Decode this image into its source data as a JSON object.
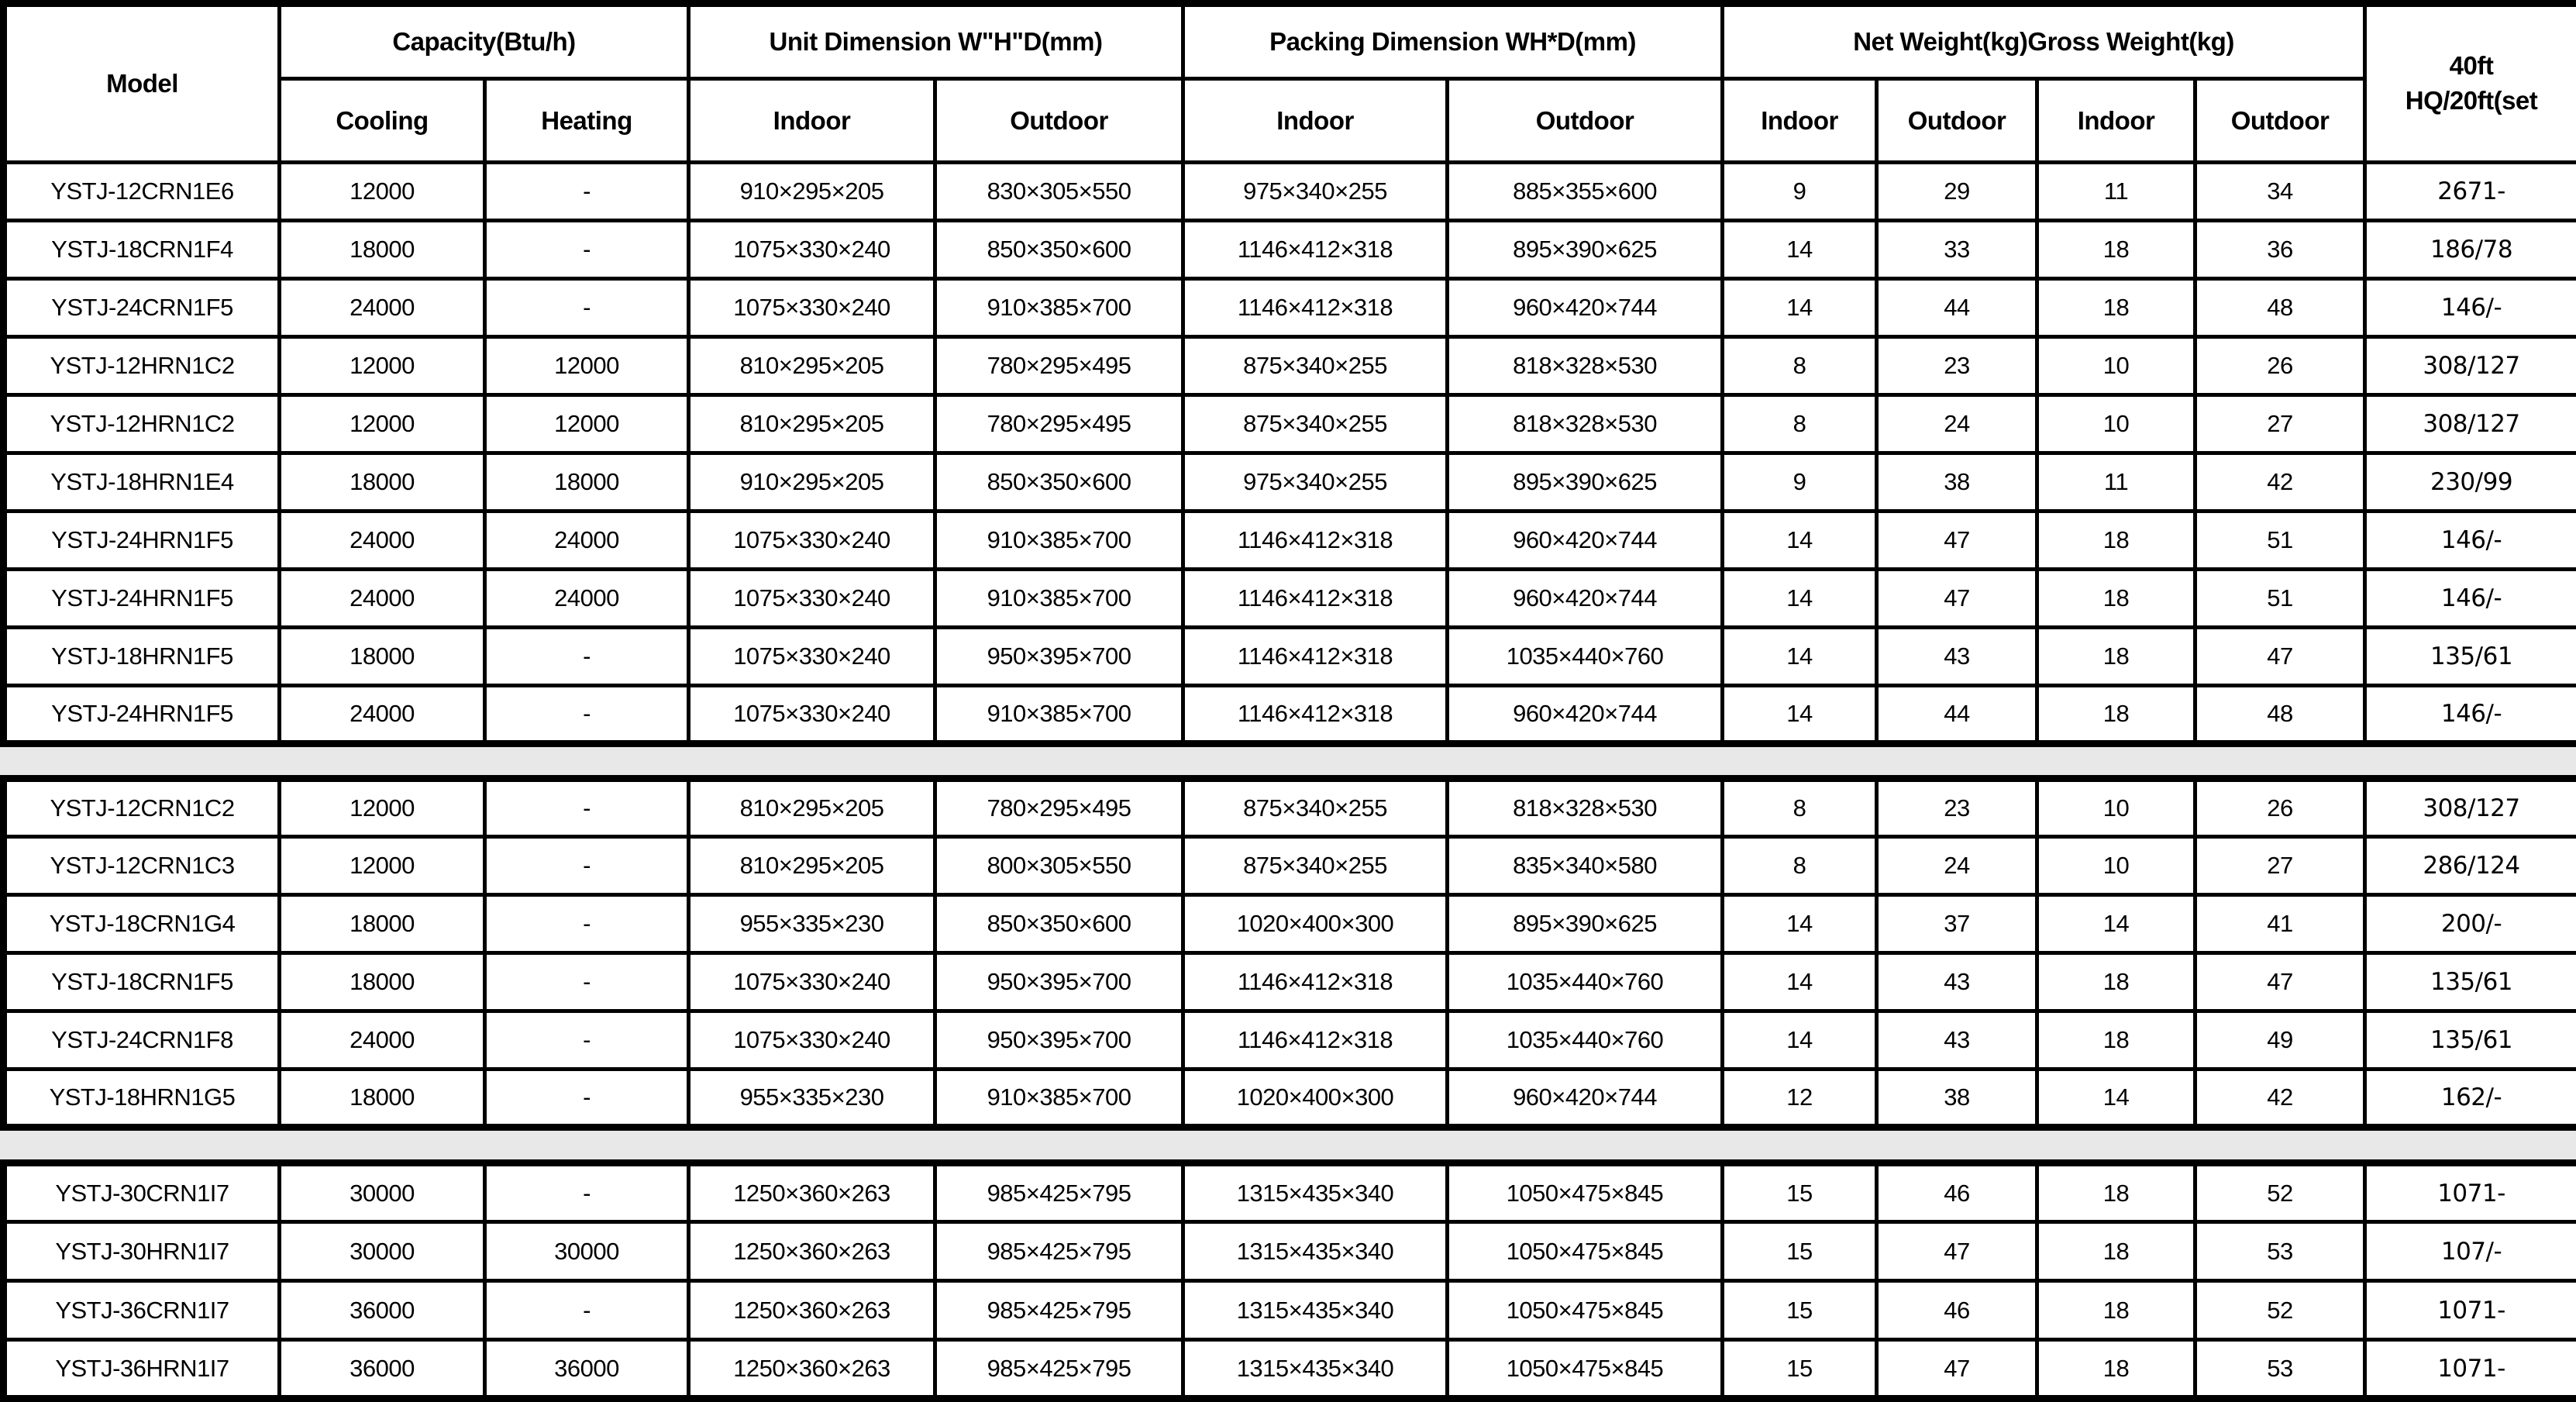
{
  "colors": {
    "background": "#ffffff",
    "text": "#000000",
    "border": "#000000",
    "separator_band": "#e8e8e8"
  },
  "table": {
    "header": {
      "model": "Model",
      "capacity_group": "Capacity(Btu/h)",
      "unit_dim_group": "Unit Dimension W\"H\"D(mm)",
      "packing_dim_group": "Packing Dimension WH*D(mm)",
      "weight_group": "Net Weight(kg)Gross Weight(kg)",
      "container_line1": "40ft",
      "container_line2": "HQ/20ft(set",
      "sub": [
        "Cooling",
        "Heating",
        "Indoor",
        "Outdoor",
        "Indoor",
        "Outdoor",
        "Indoor",
        "Outdoor",
        "Indoor",
        "Outdoor"
      ]
    },
    "column_keys": [
      "model",
      "cooling",
      "heating",
      "unit-indoor",
      "unit-outdoor",
      "packing-indoor",
      "packing-outdoor",
      "net-weight-indoor",
      "net-weight-outdoor",
      "gross-weight-indoor",
      "gross-weight-outdoor",
      "container-qty"
    ],
    "sections": [
      {
        "rows": [
          [
            "YSTJ-12CRN1E6",
            "12000",
            "-",
            "910×295×205",
            "830×305×550",
            "975×340×255",
            "885×355×600",
            "9",
            "29",
            "11",
            "34",
            "2671-"
          ],
          [
            "YSTJ-18CRN1F4",
            "18000",
            "-",
            "1075×330×240",
            "850×350×600",
            "1146×412×318",
            "895×390×625",
            "14",
            "33",
            "18",
            "36",
            "186/78"
          ],
          [
            "YSTJ-24CRN1F5",
            "24000",
            "-",
            "1075×330×240",
            "910×385×700",
            "1146×412×318",
            "960×420×744",
            "14",
            "44",
            "18",
            "48",
            "146/-"
          ],
          [
            "YSTJ-12HRN1C2",
            "12000",
            "12000",
            "810×295×205",
            "780×295×495",
            "875×340×255",
            "818×328×530",
            "8",
            "23",
            "10",
            "26",
            "308/127"
          ],
          [
            "YSTJ-12HRN1C2",
            "12000",
            "12000",
            "810×295×205",
            "780×295×495",
            "875×340×255",
            "818×328×530",
            "8",
            "24",
            "10",
            "27",
            "308/127"
          ],
          [
            "YSTJ-18HRN1E4",
            "18000",
            "18000",
            "910×295×205",
            "850×350×600",
            "975×340×255",
            "895×390×625",
            "9",
            "38",
            "11",
            "42",
            "230/99"
          ],
          [
            "YSTJ-24HRN1F5",
            "24000",
            "24000",
            "1075×330×240",
            "910×385×700",
            "1146×412×318",
            "960×420×744",
            "14",
            "47",
            "18",
            "51",
            "146/-"
          ],
          [
            "YSTJ-24HRN1F5",
            "24000",
            "24000",
            "1075×330×240",
            "910×385×700",
            "1146×412×318",
            "960×420×744",
            "14",
            "47",
            "18",
            "51",
            "146/-"
          ],
          [
            "YSTJ-18HRN1F5",
            "18000",
            "-",
            "1075×330×240",
            "950×395×700",
            "1146×412×318",
            "1035×440×760",
            "14",
            "43",
            "18",
            "47",
            "135/61"
          ],
          [
            "YSTJ-24HRN1F5",
            "24000",
            "-",
            "1075×330×240",
            "910×385×700",
            "1146×412×318",
            "960×420×744",
            "14",
            "44",
            "18",
            "48",
            "146/-"
          ]
        ]
      },
      {
        "rows": [
          [
            "YSTJ-12CRN1C2",
            "12000",
            "-",
            "810×295×205",
            "780×295×495",
            "875×340×255",
            "818×328×530",
            "8",
            "23",
            "10",
            "26",
            "308/127"
          ],
          [
            "YSTJ-12CRN1C3",
            "12000",
            "-",
            "810×295×205",
            "800×305×550",
            "875×340×255",
            "835×340×580",
            "8",
            "24",
            "10",
            "27",
            "286/124"
          ],
          [
            "YSTJ-18CRN1G4",
            "18000",
            "-",
            "955×335×230",
            "850×350×600",
            "1020×400×300",
            "895×390×625",
            "14",
            "37",
            "14",
            "41",
            "200/-"
          ],
          [
            "YSTJ-18CRN1F5",
            "18000",
            "-",
            "1075×330×240",
            "950×395×700",
            "1146×412×318",
            "1035×440×760",
            "14",
            "43",
            "18",
            "47",
            "135/61"
          ],
          [
            "YSTJ-24CRN1F8",
            "24000",
            "-",
            "1075×330×240",
            "950×395×700",
            "1146×412×318",
            "1035×440×760",
            "14",
            "43",
            "18",
            "49",
            "135/61"
          ],
          [
            "YSTJ-18HRN1G5",
            "18000",
            "-",
            "955×335×230",
            "910×385×700",
            "1020×400×300",
            "960×420×744",
            "12",
            "38",
            "14",
            "42",
            "162/-"
          ]
        ]
      },
      {
        "rows": [
          [
            "YSTJ-30CRN1I7",
            "30000",
            "-",
            "1250×360×263",
            "985×425×795",
            "1315×435×340",
            "1050×475×845",
            "15",
            "46",
            "18",
            "52",
            "1071-"
          ],
          [
            "YSTJ-30HRN1I7",
            "30000",
            "30000",
            "1250×360×263",
            "985×425×795",
            "1315×435×340",
            "1050×475×845",
            "15",
            "47",
            "18",
            "53",
            "107/-"
          ],
          [
            "YSTJ-36CRN1I7",
            "36000",
            "-",
            "1250×360×263",
            "985×425×795",
            "1315×435×340",
            "1050×475×845",
            "15",
            "46",
            "18",
            "52",
            "1071-"
          ],
          [
            "YSTJ-36HRN1I7",
            "36000",
            "36000",
            "1250×360×263",
            "985×425×795",
            "1315×435×340",
            "1050×475×845",
            "15",
            "47",
            "18",
            "53",
            "1071-"
          ]
        ]
      }
    ]
  }
}
